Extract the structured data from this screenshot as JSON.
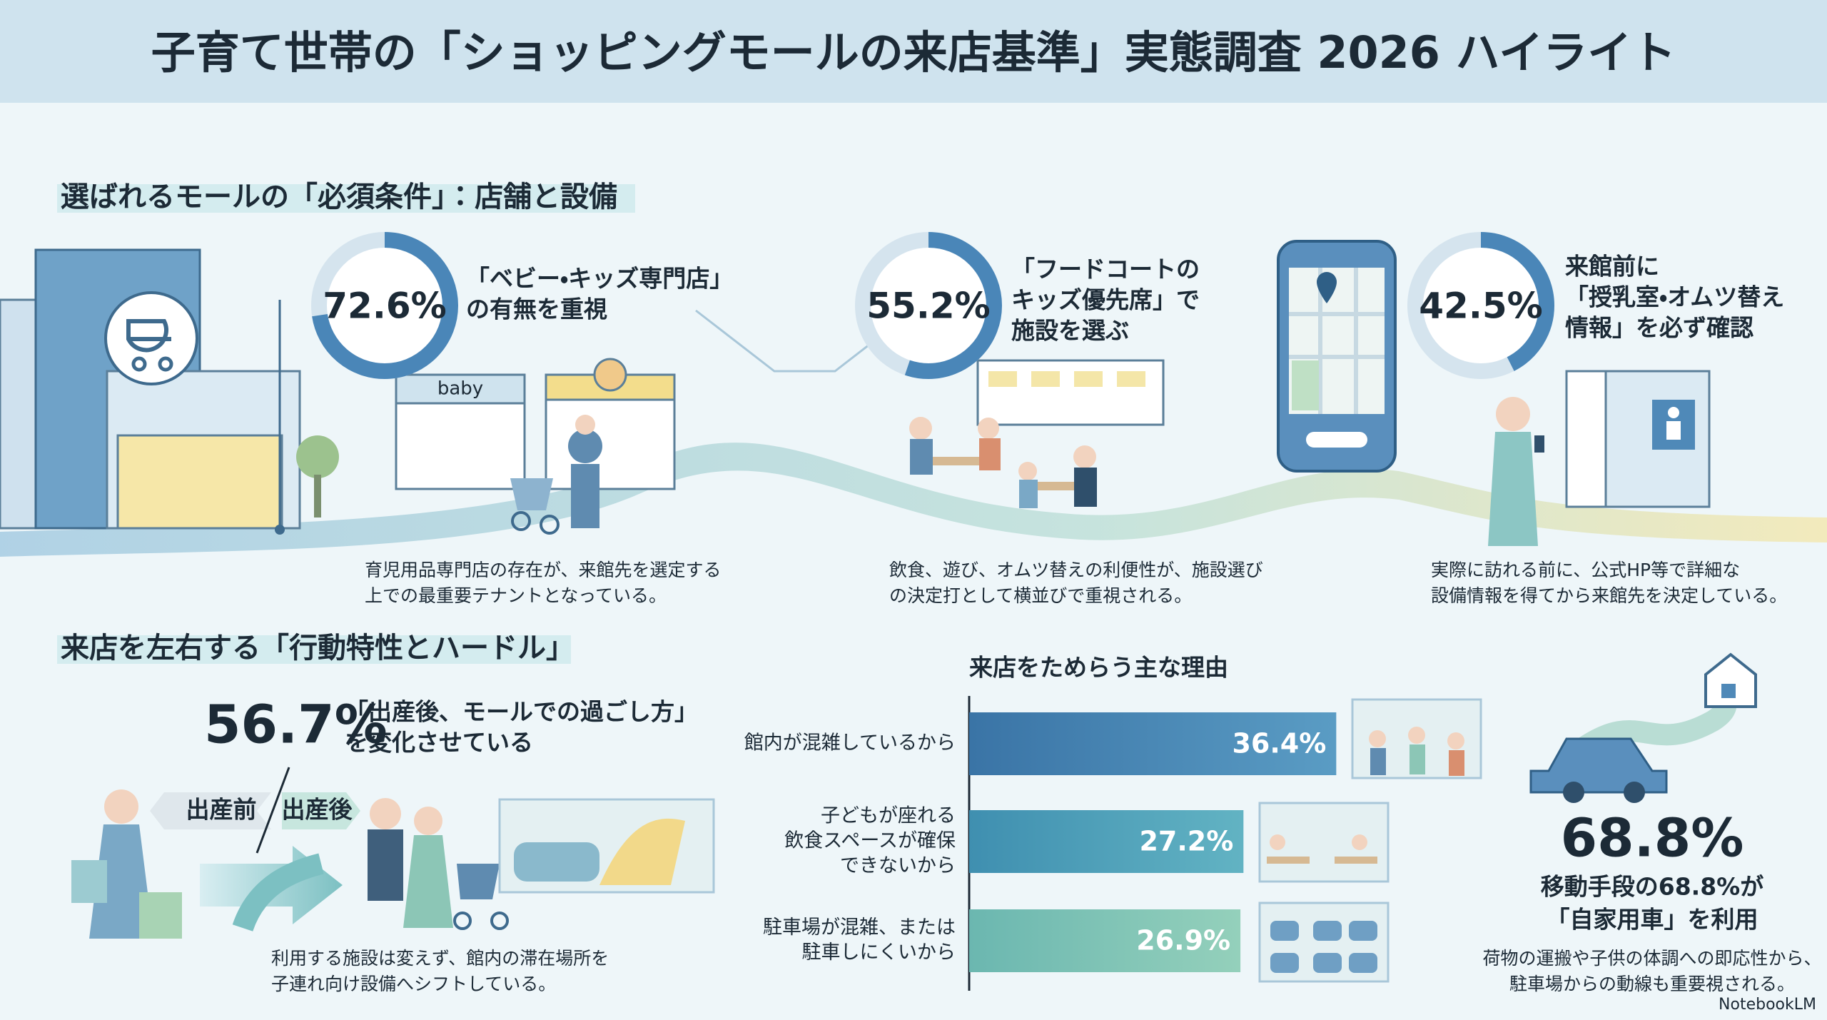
{
  "header": {
    "title": "子育て世帯の「ショッピングモールの来店基準」実態調査 2026 ハイライト"
  },
  "section1": {
    "heading": "選ばれるモールの「必須条件」：店舗と設備",
    "shop_sign": "baby",
    "items": [
      {
        "value": 72.6,
        "label": "72.6%",
        "lines": [
          "「ベビー・キッズ専門店」",
          "の有無を重視"
        ],
        "caption": [
          "育児用品専門店の存在が、来館先を選定する",
          "上での最重要テナントとなっている。"
        ]
      },
      {
        "value": 55.2,
        "label": "55.2%",
        "lines": [
          "「フードコートの",
          "キッズ優先席」で",
          "施設を選ぶ"
        ],
        "caption": [
          "飲食、遊び、オムツ替えの利便性が、施設選び",
          "の決定打として横並びで重視される。"
        ]
      },
      {
        "value": 42.5,
        "label": "42.5%",
        "lines": [
          "来館前に",
          "「授乳室・オムツ替え",
          "情報」を必ず確認"
        ],
        "caption": [
          "実際に訪れる前に、公式HP等で詳細な",
          "設備情報を得てから来館先を決定している。"
        ]
      }
    ]
  },
  "section2": {
    "heading": "来店を左右する「行動特性とハードル」",
    "stat": "56.7%",
    "lines": [
      "「出産後、モールでの過ごし方」",
      "を変化させている"
    ],
    "before": "出産前",
    "after": "出産後",
    "caption": [
      "利用する施設は変えず、館内の滞在場所を",
      "子連れ向け設備へシフトしている。"
    ]
  },
  "reasons": {
    "title": "来店をためらう主な理由",
    "bars": [
      {
        "lines": [
          "館内が混雑しているから"
        ],
        "value": 36.4,
        "label": "36.4%"
      },
      {
        "lines": [
          "子どもが座れる",
          "飲食スペースが確保",
          "できないから"
        ],
        "value": 27.2,
        "label": "27.2%"
      },
      {
        "lines": [
          "駐車場が混雑、または",
          "駐車しにくいから"
        ],
        "value": 26.9,
        "label": "26.9%"
      }
    ]
  },
  "car": {
    "stat": "68.8%",
    "lines": [
      "移動手段の68.8%が",
      "「自家用車」を利用"
    ],
    "caption": [
      "荷物の運搬や子供の体調への即応性から、",
      "駐車場からの動線も重要視される。"
    ]
  },
  "footer": {
    "brand": "NotebookLM"
  }
}
